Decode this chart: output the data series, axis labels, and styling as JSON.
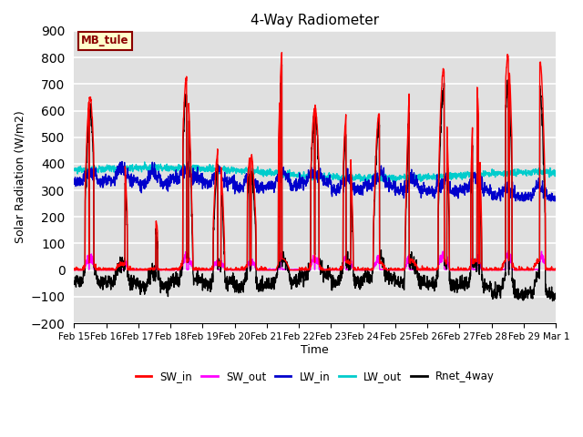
{
  "title": "4-Way Radiometer",
  "xlabel": "Time",
  "ylabel": "Solar Radiation (W/m2)",
  "ylim": [
    -200,
    900
  ],
  "yticks": [
    -200,
    -100,
    0,
    100,
    200,
    300,
    400,
    500,
    600,
    700,
    800,
    900
  ],
  "annotation": "MB_tule",
  "annotation_color": "#8B0000",
  "annotation_bg": "#FFFFCC",
  "background_color": "#E0E0E0",
  "grid_color": "#FFFFFF",
  "x_labels": [
    "Feb 15",
    "Feb 16",
    "Feb 17",
    "Feb 18",
    "Feb 19",
    "Feb 20",
    "Feb 21",
    "Feb 22",
    "Feb 23",
    "Feb 24",
    "Feb 25",
    "Feb 26",
    "Feb 27",
    "Feb 28",
    "Feb 29",
    "Mar 1"
  ],
  "series": {
    "SW_in": {
      "color": "#FF0000",
      "lw": 1.0
    },
    "SW_out": {
      "color": "#FF00FF",
      "lw": 1.0
    },
    "LW_in": {
      "color": "#0000CC",
      "lw": 1.0
    },
    "LW_out": {
      "color": "#00CCCC",
      "lw": 1.0
    },
    "Rnet_4way": {
      "color": "#000000",
      "lw": 1.0
    }
  },
  "legend_entries": [
    "SW_in",
    "SW_out",
    "LW_in",
    "LW_out",
    "Rnet_4way"
  ],
  "legend_colors": [
    "#FF0000",
    "#FF00FF",
    "#0000CC",
    "#00CCCC",
    "#000000"
  ]
}
